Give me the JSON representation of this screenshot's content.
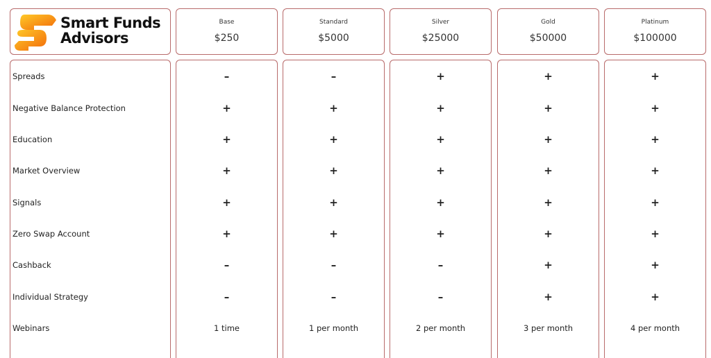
{
  "brand": {
    "name_line1": "Smart Funds",
    "name_line2": "Advisors",
    "colors": [
      "#f7a21b",
      "#f26a0a",
      "#ffc928"
    ]
  },
  "tiers": [
    {
      "name": "Base",
      "price": "$250",
      "values": [
        "–",
        "+",
        "+",
        "+",
        "+",
        "+",
        "–",
        "–",
        "1 time"
      ]
    },
    {
      "name": "Standard",
      "price": "$5000",
      "values": [
        "–",
        "+",
        "+",
        "+",
        "+",
        "+",
        "–",
        "–",
        "1 per month"
      ]
    },
    {
      "name": "Silver",
      "price": "$25000",
      "values": [
        "+",
        "+",
        "+",
        "+",
        "+",
        "+",
        "–",
        "–",
        "2 per month"
      ]
    },
    {
      "name": "Gold",
      "price": "$50000",
      "values": [
        "+",
        "+",
        "+",
        "+",
        "+",
        "+",
        "+",
        "+",
        "3 per month"
      ]
    },
    {
      "name": "Platinum",
      "price": "$100000",
      "values": [
        "+",
        "+",
        "+",
        "+",
        "+",
        "+",
        "+",
        "+",
        "4 per month"
      ]
    }
  ],
  "features": [
    "Spreads",
    "Negative Balance Protection",
    "Education",
    "Market Overview",
    "Signals",
    "Zero Swap Account",
    "Cashback",
    "Individual Strategy",
    "Webinars"
  ],
  "border_color": "#b86a6a"
}
